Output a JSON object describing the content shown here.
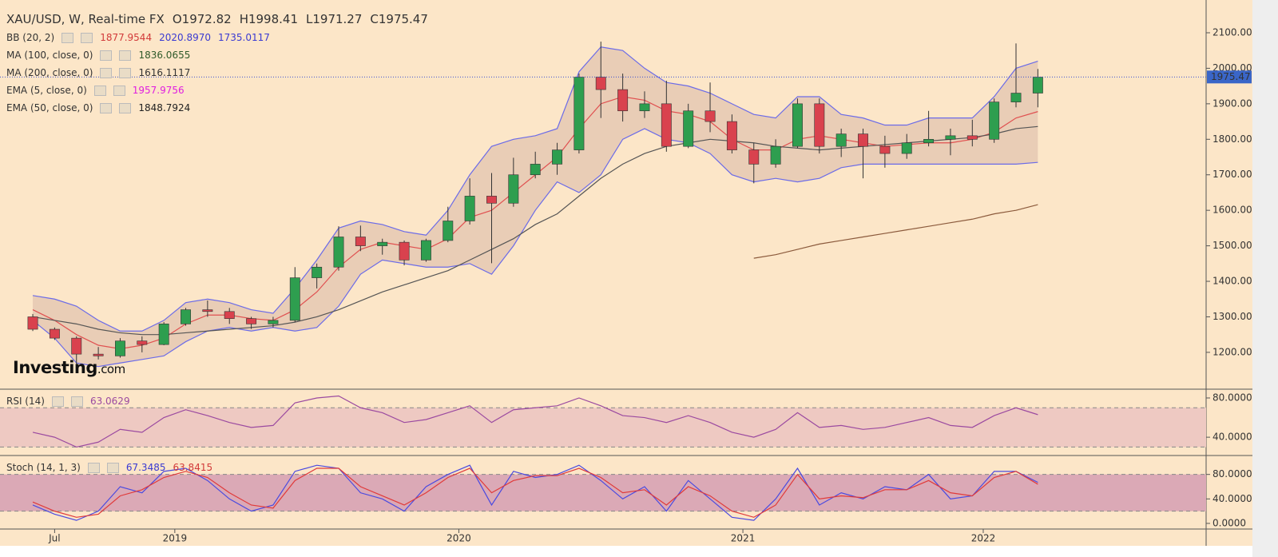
{
  "header": {
    "symbol": "XAU/USD, W, Real-time FX",
    "open": "O1972.82",
    "high": "H1998.41",
    "low": "L1971.27",
    "close": "C1975.47"
  },
  "indicators": [
    {
      "label": "BB (20, 2)",
      "values": [
        "1877.9544",
        "2020.8970",
        "1735.0117"
      ],
      "colors": [
        "#d23a3a",
        "#3a3ad2",
        "#3a3ad2"
      ]
    },
    {
      "label": "MA (100, close, 0)",
      "values": [
        "1836.0655"
      ],
      "colors": [
        "#2f5a2a"
      ]
    },
    {
      "label": "MA (200, close, 0)",
      "values": [
        "1616.1117"
      ],
      "colors": [
        "#333333"
      ]
    },
    {
      "label": "EMA (5, close, 0)",
      "values": [
        "1957.9756"
      ],
      "colors": [
        "#e020e0"
      ]
    },
    {
      "label": "EMA (50, close, 0)",
      "values": [
        "1848.7924"
      ],
      "colors": [
        "#222222"
      ]
    }
  ],
  "logo": {
    "brand": "Investing",
    "suffix": ".com"
  },
  "chart_data": [
    {
      "type": "candlestick",
      "open": [
        1300,
        1265,
        1240,
        1195,
        1190,
        1232,
        1222,
        1280,
        1320,
        1315,
        1295,
        1280,
        1290,
        1410,
        1440,
        1525,
        1500,
        1510,
        1460,
        1515,
        1570,
        1640,
        1620,
        1700,
        1730,
        1770,
        1975,
        1940,
        1880,
        1900,
        1780,
        1880,
        1850,
        1770,
        1730,
        1780,
        1900,
        1780,
        1815,
        1780,
        1760,
        1790,
        1800,
        1810,
        1800,
        1905,
        1930
      ],
      "high": [
        1308,
        1270,
        1245,
        1215,
        1240,
        1245,
        1285,
        1325,
        1346,
        1325,
        1300,
        1300,
        1440,
        1450,
        1555,
        1557,
        1520,
        1515,
        1520,
        1610,
        1690,
        1705,
        1748,
        1765,
        1790,
        1985,
        2075,
        1985,
        1935,
        1965,
        1900,
        1960,
        1870,
        1790,
        1800,
        1915,
        1915,
        1830,
        1830,
        1810,
        1815,
        1880,
        1830,
        1855,
        1915,
        2070,
        1998
      ],
      "low": [
        1260,
        1235,
        1160,
        1180,
        1185,
        1200,
        1220,
        1275,
        1300,
        1280,
        1266,
        1270,
        1285,
        1380,
        1430,
        1485,
        1475,
        1445,
        1455,
        1510,
        1560,
        1451,
        1610,
        1690,
        1700,
        1760,
        1860,
        1850,
        1860,
        1765,
        1775,
        1820,
        1760,
        1676,
        1720,
        1775,
        1760,
        1750,
        1690,
        1720,
        1745,
        1780,
        1755,
        1780,
        1790,
        1890,
        1890
      ],
      "close": [
        1265,
        1240,
        1195,
        1190,
        1232,
        1222,
        1280,
        1320,
        1315,
        1295,
        1280,
        1290,
        1410,
        1440,
        1525,
        1500,
        1510,
        1460,
        1515,
        1570,
        1640,
        1620,
        1700,
        1730,
        1770,
        1975,
        1940,
        1880,
        1900,
        1780,
        1880,
        1850,
        1770,
        1730,
        1780,
        1900,
        1780,
        1815,
        1780,
        1760,
        1790,
        1800,
        1810,
        1800,
        1905,
        1930,
        1975
      ],
      "up_color": "#2e9e4f",
      "down_color": "#d9424e",
      "series": [
        {
          "color": "#6b6be8",
          "values": [
            1360,
            1350,
            1330,
            1290,
            1260,
            1260,
            1290,
            1340,
            1350,
            1340,
            1320,
            1310,
            1380,
            1460,
            1550,
            1570,
            1560,
            1540,
            1530,
            1600,
            1700,
            1780,
            1800,
            1810,
            1830,
            1990,
            2060,
            2050,
            2000,
            1960,
            1950,
            1930,
            1900,
            1870,
            1860,
            1920,
            1920,
            1870,
            1860,
            1840,
            1840,
            1860,
            1860,
            1860,
            1920,
            2000,
            2020
          ]
        },
        {
          "color": "#6b6be8",
          "values": [
            1290,
            1240,
            1170,
            1160,
            1170,
            1180,
            1190,
            1230,
            1260,
            1270,
            1260,
            1270,
            1260,
            1270,
            1330,
            1420,
            1460,
            1450,
            1440,
            1440,
            1450,
            1420,
            1500,
            1600,
            1680,
            1650,
            1700,
            1800,
            1830,
            1800,
            1790,
            1760,
            1700,
            1680,
            1690,
            1680,
            1690,
            1720,
            1730,
            1730,
            1730,
            1730,
            1730,
            1730,
            1730,
            1730,
            1735
          ]
        },
        {
          "color": "#e05050",
          "values": [
            1320,
            1290,
            1250,
            1220,
            1210,
            1220,
            1240,
            1280,
            1305,
            1305,
            1295,
            1290,
            1320,
            1370,
            1440,
            1490,
            1510,
            1500,
            1490,
            1520,
            1580,
            1600,
            1650,
            1700,
            1750,
            1830,
            1900,
            1920,
            1910,
            1880,
            1870,
            1850,
            1800,
            1770,
            1770,
            1800,
            1810,
            1800,
            1790,
            1780,
            1785,
            1790,
            1790,
            1800,
            1820,
            1860,
            1878
          ]
        },
        {
          "color": "#555555",
          "values": [
            1300,
            1290,
            1280,
            1265,
            1255,
            1250,
            1250,
            1255,
            1260,
            1265,
            1270,
            1275,
            1285,
            1300,
            1320,
            1345,
            1370,
            1390,
            1410,
            1430,
            1460,
            1490,
            1520,
            1560,
            1590,
            1640,
            1690,
            1730,
            1760,
            1780,
            1790,
            1800,
            1795,
            1790,
            1780,
            1775,
            1770,
            1775,
            1780,
            1785,
            1790,
            1795,
            1800,
            1805,
            1815,
            1830,
            1836
          ]
        },
        {
          "color": "#8b5a3c",
          "values": [
            null,
            null,
            null,
            null,
            null,
            null,
            null,
            null,
            null,
            null,
            null,
            null,
            null,
            null,
            null,
            null,
            null,
            null,
            null,
            null,
            null,
            null,
            null,
            null,
            null,
            null,
            null,
            null,
            null,
            null,
            null,
            null,
            null,
            1465,
            1475,
            1490,
            1505,
            1515,
            1525,
            1535,
            1545,
            1555,
            1565,
            1575,
            1590,
            1600,
            1616
          ]
        }
      ],
      "band_color": "#d9b8a8",
      "last_price": 1975.47,
      "xlim": [
        -1.5,
        53.7
      ],
      "xticks": [
        {
          "value": 1,
          "label": "Jul"
        },
        {
          "value": 6.5,
          "label": "2019"
        },
        {
          "value": 19.5,
          "label": "2020"
        },
        {
          "value": 32.5,
          "label": "2021"
        },
        {
          "value": 43.5,
          "label": "2022"
        }
      ],
      "ylim": [
        1103,
        2181
      ],
      "yticks": [
        {
          "value": 1200,
          "label": "1200.00"
        },
        {
          "value": 1300,
          "label": "1300.00"
        },
        {
          "value": 1400,
          "label": "1400.00"
        },
        {
          "value": 1500,
          "label": "1500.00"
        },
        {
          "value": 1600,
          "label": "1600.00"
        },
        {
          "value": 1700,
          "label": "1700.00"
        },
        {
          "value": 1800,
          "label": "1800.00"
        },
        {
          "value": 1900,
          "label": "1900.00"
        },
        {
          "value": 2000,
          "label": "2000.00"
        },
        {
          "value": 2100,
          "label": "2100.00"
        }
      ]
    },
    {
      "type": "line",
      "title": "RSI (14)",
      "legend_values": [
        "63.0629"
      ],
      "legend_colors": [
        "#9b4aa0"
      ],
      "series": [
        {
          "color": "#9b4aa0",
          "values": [
            45,
            40,
            30,
            35,
            48,
            45,
            60,
            68,
            62,
            55,
            50,
            52,
            75,
            80,
            82,
            70,
            65,
            55,
            58,
            65,
            72,
            55,
            68,
            70,
            72,
            80,
            72,
            62,
            60,
            55,
            62,
            55,
            45,
            40,
            48,
            65,
            50,
            52,
            48,
            50,
            55,
            60,
            52,
            50,
            62,
            70,
            63
          ]
        }
      ],
      "bands": [
        30,
        70
      ],
      "band_color": "#eec9c2",
      "ylim": [
        23,
        86.5
      ],
      "yticks": [
        {
          "value": 40,
          "label": "40.0000"
        },
        {
          "value": 80,
          "label": "80.0000"
        }
      ]
    },
    {
      "type": "line",
      "title": "Stoch (14, 1, 3)",
      "legend_values": [
        "67.3485",
        "63.8415"
      ],
      "legend_colors": [
        "#3a3ad2",
        "#d23a3a"
      ],
      "series": [
        {
          "color": "#4a4ae0",
          "values": [
            30,
            15,
            5,
            20,
            60,
            50,
            85,
            90,
            70,
            40,
            20,
            30,
            85,
            95,
            90,
            50,
            40,
            20,
            60,
            80,
            95,
            30,
            85,
            75,
            80,
            95,
            70,
            40,
            60,
            20,
            70,
            40,
            10,
            5,
            40,
            90,
            30,
            50,
            40,
            60,
            55,
            80,
            40,
            45,
            85,
            85,
            67
          ]
        },
        {
          "color": "#e03a3a",
          "values": [
            35,
            20,
            10,
            15,
            45,
            55,
            75,
            85,
            75,
            50,
            30,
            25,
            70,
            90,
            90,
            60,
            45,
            30,
            50,
            75,
            90,
            50,
            70,
            78,
            78,
            90,
            75,
            50,
            55,
            30,
            60,
            45,
            20,
            10,
            30,
            80,
            40,
            45,
            42,
            55,
            55,
            70,
            50,
            45,
            75,
            85,
            64
          ]
        }
      ],
      "bands": [
        20,
        80
      ],
      "band_color": "#dba9b6",
      "ylim": [
        -6.6,
        107
      ],
      "yticks": [
        {
          "value": 0,
          "label": "0.0000"
        },
        {
          "value": 40,
          "label": "40.0000"
        },
        {
          "value": 80,
          "label": "80.0000"
        }
      ]
    }
  ]
}
